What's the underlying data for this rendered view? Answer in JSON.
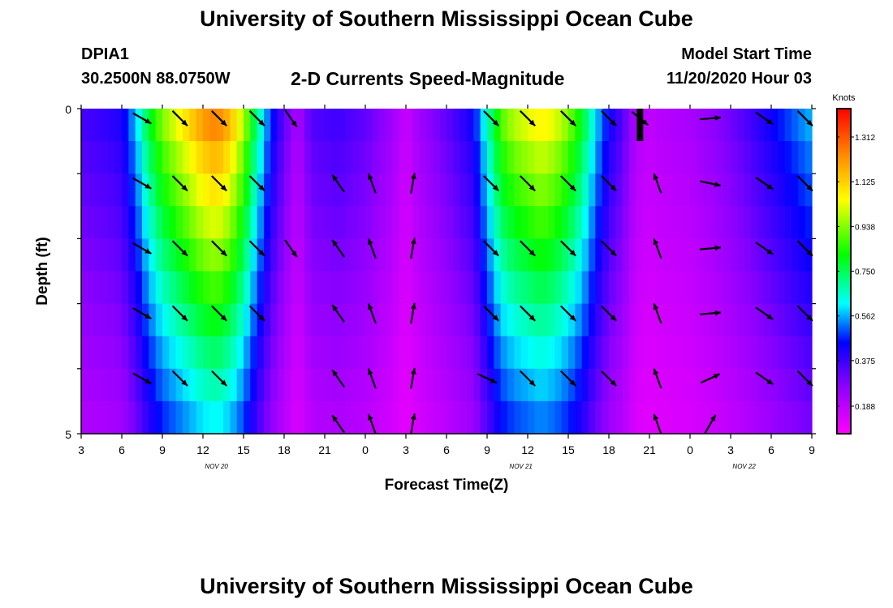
{
  "header": {
    "title": "University of Southern Mississippi Ocean Cube",
    "station_id": "DPIA1",
    "station_coords": "30.2500N 88.0750W",
    "model_start_label": "Model Start Time",
    "model_start_value": "11/20/2020 Hour 03"
  },
  "footer": {
    "title": "University of Southern Mississippi Ocean Cube"
  },
  "chart_data": {
    "type": "heatmap",
    "title": "2-D Currents Speed-Magnitude",
    "xlabel": "Forecast Time(Z)",
    "ylabel": "Depth (ft)",
    "colorbar_label": "Knots",
    "colorbar_ticks": [
      "1.312",
      "1.125",
      "0.938",
      "0.750",
      "0.562",
      "0.375",
      "0.188"
    ],
    "colorbar_range": [
      0.0,
      1.5
    ],
    "y_ticks": [
      "0",
      "5"
    ],
    "y_range": [
      0,
      5
    ],
    "x_tick_labels": [
      "3",
      "6",
      "9",
      "12",
      "15",
      "18",
      "21",
      "0",
      "3",
      "6",
      "9",
      "12",
      "15",
      "18",
      "21",
      "0",
      "3",
      "6",
      "9"
    ],
    "x_range_hours": [
      3,
      57
    ],
    "date_labels": [
      {
        "text": "NOV  20",
        "hour": 13
      },
      {
        "text": "NOV  21",
        "hour": 35.5
      },
      {
        "text": "NOV  22",
        "hour": 52
      }
    ],
    "speed_by_hour": [
      [
        3,
        0.32
      ],
      [
        5,
        0.35
      ],
      [
        6,
        0.38
      ],
      [
        7,
        0.55
      ],
      [
        8,
        0.78
      ],
      [
        9,
        0.95
      ],
      [
        10,
        1.05
      ],
      [
        11,
        1.15
      ],
      [
        12,
        1.25
      ],
      [
        13,
        1.3
      ],
      [
        14,
        1.2
      ],
      [
        15,
        1.0
      ],
      [
        16,
        0.7
      ],
      [
        17,
        0.45
      ],
      [
        18,
        0.28
      ],
      [
        19,
        0.15
      ],
      [
        20,
        0.3
      ],
      [
        22,
        0.33
      ],
      [
        24,
        0.28
      ],
      [
        26,
        0.18
      ],
      [
        27,
        0.1
      ],
      [
        28,
        0.18
      ],
      [
        30,
        0.28
      ],
      [
        32,
        0.4
      ],
      [
        33,
        0.65
      ],
      [
        34,
        0.9
      ],
      [
        35,
        1.0
      ],
      [
        36,
        1.05
      ],
      [
        37,
        1.1
      ],
      [
        38,
        1.05
      ],
      [
        39,
        0.95
      ],
      [
        40,
        0.8
      ],
      [
        41,
        0.58
      ],
      [
        42,
        0.4
      ],
      [
        43,
        0.3
      ],
      [
        44,
        0.15
      ],
      [
        45,
        0.12
      ],
      [
        46,
        0.14
      ],
      [
        48,
        0.16
      ],
      [
        50,
        0.22
      ],
      [
        52,
        0.3
      ],
      [
        54,
        0.4
      ],
      [
        55,
        0.45
      ],
      [
        57,
        0.55
      ]
    ],
    "depth_factors": [
      1.0,
      0.93,
      0.87,
      0.81,
      0.75,
      0.69,
      0.63,
      0.57,
      0.52,
      0.47
    ],
    "vector_rows_depth": [
      0.15,
      1.15,
      2.15,
      3.15,
      4.15,
      4.85
    ],
    "vectors": [
      {
        "hour": 7.5,
        "angle": -30,
        "rows": [
          0,
          1,
          2,
          3,
          4
        ]
      },
      {
        "hour": 10.3,
        "angle": -45,
        "rows": [
          0,
          1,
          2,
          3,
          4
        ]
      },
      {
        "hour": 13.2,
        "angle": -45,
        "rows": [
          0,
          1,
          2,
          3,
          4
        ]
      },
      {
        "hour": 16,
        "angle": -45,
        "rows": [
          0,
          1,
          2,
          3
        ]
      },
      {
        "hour": 18.5,
        "angle": -55,
        "rows": [
          0,
          2
        ]
      },
      {
        "hour": 22,
        "angle": 125,
        "rows": [
          1,
          2,
          3,
          4,
          5
        ]
      },
      {
        "hour": 24.5,
        "angle": 110,
        "rows": [
          1,
          2,
          3,
          4,
          5
        ]
      },
      {
        "hour": 27.5,
        "angle": 80,
        "rows": [
          1,
          2,
          3,
          4,
          5
        ]
      },
      {
        "hour": 33,
        "angle": -25,
        "rows": [
          4
        ]
      },
      {
        "hour": 33.3,
        "angle": -45,
        "rows": [
          0,
          1,
          2,
          3
        ]
      },
      {
        "hour": 36,
        "angle": -45,
        "rows": [
          0,
          1,
          2,
          3,
          4
        ]
      },
      {
        "hour": 39,
        "angle": -45,
        "rows": [
          0,
          1,
          2,
          3,
          4
        ]
      },
      {
        "hour": 42,
        "angle": -45,
        "rows": [
          0,
          1,
          2,
          3,
          4
        ]
      },
      {
        "hour": 44.3,
        "angle": -40,
        "rows": [
          0
        ]
      },
      {
        "hour": 45.6,
        "angle": 110,
        "rows": [
          1,
          2,
          3,
          4,
          5
        ]
      },
      {
        "hour": 49.5,
        "angle": 5,
        "rows": [
          0,
          2,
          3
        ]
      },
      {
        "hour": 49.5,
        "angle": -12,
        "rows": [
          1
        ]
      },
      {
        "hour": 49.5,
        "angle": 25,
        "rows": [
          4
        ]
      },
      {
        "hour": 49.5,
        "angle": 60,
        "rows": [
          5
        ]
      },
      {
        "hour": 53.5,
        "angle": -35,
        "rows": [
          0,
          1,
          2,
          3,
          4
        ]
      },
      {
        "hour": 56.5,
        "angle": -45,
        "rows": [
          0,
          1,
          2,
          3,
          4
        ]
      }
    ],
    "black_marker": {
      "hour": 44.3,
      "depth_range": [
        0,
        0.5
      ]
    },
    "grid": false,
    "legend": "colorbar right"
  }
}
